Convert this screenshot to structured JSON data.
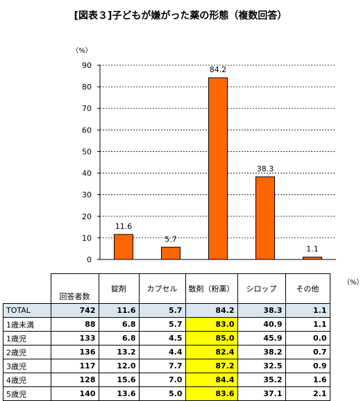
{
  "title": "[図表３]子どもが嫌がった薬の形態（複数回答）",
  "chart_data": {
    "type": "bar",
    "categories": [
      "錠剤",
      "カプセル",
      "散剤（粉薬）",
      "シロップ",
      "その他"
    ],
    "values": [
      11.6,
      5.7,
      84.2,
      38.3,
      1.1
    ],
    "ylabel": "（%）",
    "ylim": [
      0,
      90
    ],
    "yticks": [
      0,
      10,
      20,
      30,
      40,
      50,
      60,
      70,
      80,
      90
    ],
    "grid": true,
    "legend": "none",
    "bar_color": "#ff6600"
  },
  "table": {
    "unit": "（%）",
    "respondents_header": "回答者数",
    "columns": [
      "錠剤",
      "カプセル",
      "散剤（粉薬）",
      "シロップ",
      "その他"
    ],
    "rows": [
      {
        "label": "TOTAL",
        "n": "742",
        "values": [
          "11.6",
          "5.7",
          "84.2",
          "38.3",
          "1.1"
        ]
      },
      {
        "label": "1歳未満",
        "n": "88",
        "values": [
          "6.8",
          "5.7",
          "83.0",
          "40.9",
          "1.1"
        ]
      },
      {
        "label": "1歳児",
        "n": "133",
        "values": [
          "6.8",
          "4.5",
          "85.0",
          "45.9",
          "0.0"
        ]
      },
      {
        "label": "2歳児",
        "n": "136",
        "values": [
          "13.2",
          "4.4",
          "82.4",
          "38.2",
          "0.7"
        ]
      },
      {
        "label": "3歳児",
        "n": "117",
        "values": [
          "12.0",
          "7.7",
          "87.2",
          "32.5",
          "0.9"
        ]
      },
      {
        "label": "4歳児",
        "n": "128",
        "values": [
          "15.6",
          "7.0",
          "84.4",
          "35.2",
          "1.6"
        ]
      },
      {
        "label": "5歳児",
        "n": "140",
        "values": [
          "13.6",
          "5.0",
          "83.6",
          "37.1",
          "2.1"
        ]
      }
    ],
    "highlight_color": "#ffff00"
  }
}
